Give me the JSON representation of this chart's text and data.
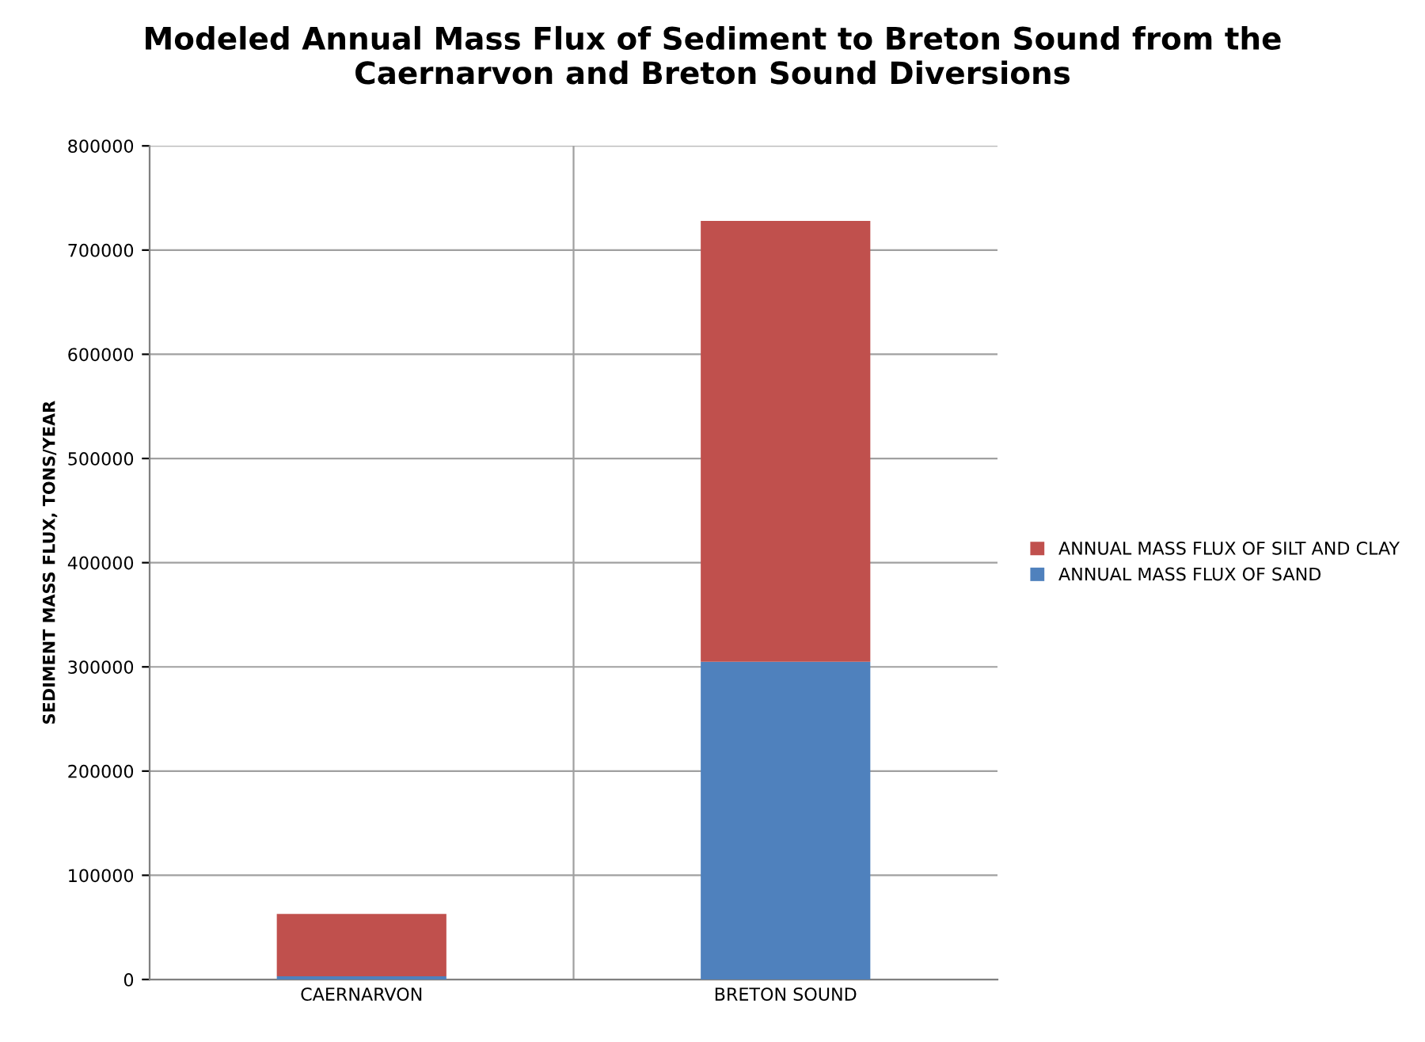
{
  "chart_data": {
    "type": "bar",
    "title": "Modeled Annual Mass Flux of Sediment to Breton Sound from the\nCaernarvon and Breton Sound Diversions",
    "ylabel": "SEDIMENT MASS FLUX, TONS/YEAR",
    "categories": [
      "CAERNARVON",
      "BRETON SOUND"
    ],
    "stacked": true,
    "series": [
      {
        "name": "ANNUAL MASS FLUX OF SAND",
        "color": "#4f81bd",
        "values": [
          3000,
          305000
        ]
      },
      {
        "name": "ANNUAL MASS FLUX OF SILT AND CLAY",
        "color": "#c0504d",
        "values": [
          60000,
          423000
        ]
      }
    ],
    "ylim": [
      0,
      800000
    ],
    "yticks": [
      0,
      100000,
      200000,
      300000,
      400000,
      500000,
      600000,
      700000,
      800000
    ],
    "grid": true,
    "legend": "right"
  }
}
